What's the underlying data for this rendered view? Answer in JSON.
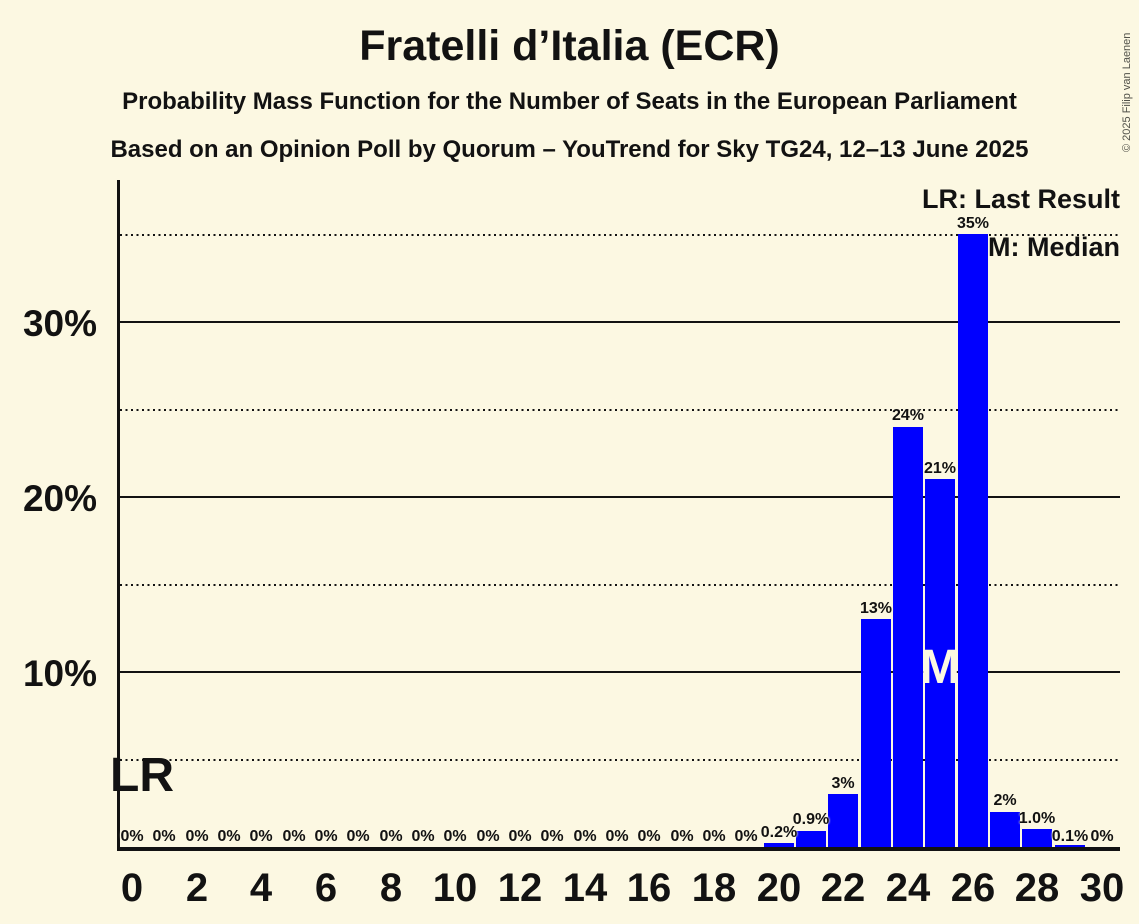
{
  "title": "Fratelli d’Italia (ECR)",
  "subtitle_line1": "Probability Mass Function for the Number of Seats in the European Parliament",
  "subtitle_line2": "Based on an Opinion Poll by Quorum – YouTrend for Sky TG24, 12–13 June 2025",
  "copyright": "© 2025 Filip van Laenen",
  "legend": {
    "last_result": "LR: Last Result",
    "median": "M: Median"
  },
  "colors": {
    "background": "#FCF8E2",
    "bar": "#0000FF",
    "text": "#121212",
    "median_letter": "#FCF8E2",
    "copyright_text": "#52524A"
  },
  "chart_data": {
    "type": "bar",
    "seats": [
      0,
      1,
      2,
      3,
      4,
      5,
      6,
      7,
      8,
      9,
      10,
      11,
      12,
      13,
      14,
      15,
      16,
      17,
      18,
      19,
      20,
      21,
      22,
      23,
      24,
      25,
      26,
      27,
      28,
      29,
      30
    ],
    "probabilities_pct": [
      0,
      0,
      0,
      0,
      0,
      0,
      0,
      0,
      0,
      0,
      0,
      0,
      0,
      0,
      0,
      0,
      0,
      0,
      0,
      0,
      0.2,
      0.9,
      3,
      13,
      24,
      21,
      35,
      2,
      1.0,
      0.1,
      0
    ],
    "bar_labels": [
      "0%",
      "0%",
      "0%",
      "0%",
      "0%",
      "0%",
      "0%",
      "0%",
      "0%",
      "0%",
      "0%",
      "0%",
      "0%",
      "0%",
      "0%",
      "0%",
      "0%",
      "0%",
      "0%",
      "0%",
      "0.2%",
      "0.9%",
      "3%",
      "13%",
      "24%",
      "21%",
      "35%",
      "2%",
      "1.0%",
      "0.1%",
      "0%"
    ],
    "x_tick_labels": [
      "0",
      "2",
      "4",
      "6",
      "8",
      "10",
      "12",
      "14",
      "16",
      "18",
      "20",
      "22",
      "24",
      "26",
      "28",
      "30"
    ],
    "y_tick_labels": [
      {
        "pct": 10,
        "label": "10%"
      },
      {
        "pct": 20,
        "label": "20%"
      },
      {
        "pct": 30,
        "label": "30%"
      }
    ],
    "y_solid_gridlines_pct": [
      10,
      20,
      30
    ],
    "y_dotted_gridlines_pct": [
      5,
      15,
      25,
      35
    ],
    "ylim_pct": [
      0,
      38
    ],
    "median_seat": 25,
    "median_marker": "M",
    "last_result_seat": 0,
    "last_result_marker": "LR"
  }
}
